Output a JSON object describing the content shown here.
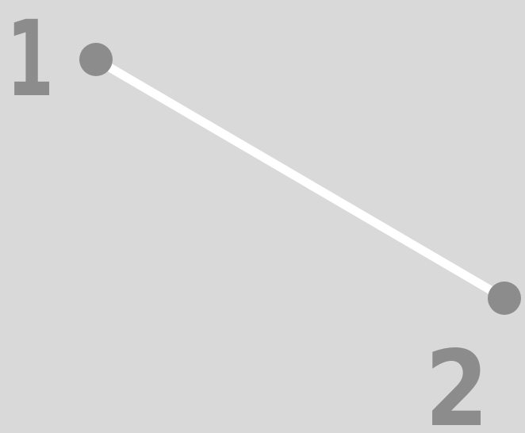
{
  "diagram": {
    "points": [
      {
        "label": "1"
      },
      {
        "label": "2"
      }
    ],
    "colors": {
      "background": "#d9d9d9",
      "point": "#8c8c8c",
      "line": "#ffffff",
      "label": "#8c8c8c"
    }
  }
}
